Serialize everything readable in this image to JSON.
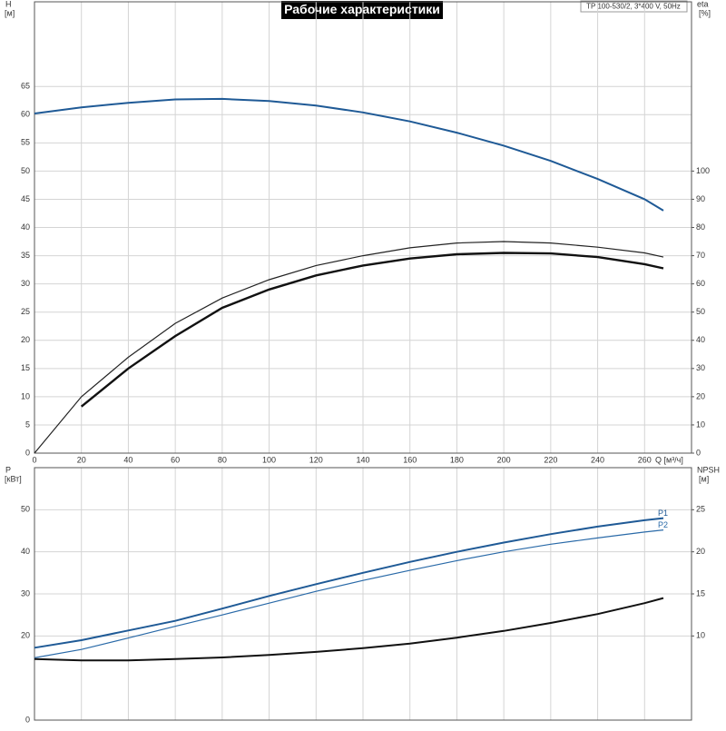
{
  "chart_data": [
    {
      "type": "line",
      "title": "Рабочие характеристики",
      "note": "TP 100-530/2, 3*400 V, 50Hz",
      "ylabel": "H",
      "yunit": "[м]",
      "y2label": "eta",
      "y2unit": "[%]",
      "xlabel": "Q [м³/ч]",
      "x": [
        0,
        20,
        40,
        60,
        80,
        100,
        120,
        140,
        160,
        180,
        200,
        220,
        240,
        260,
        268
      ],
      "xlim": [
        0,
        280
      ],
      "xticks": [
        0,
        20,
        40,
        60,
        80,
        100,
        120,
        140,
        160,
        180,
        200,
        220,
        240,
        260
      ],
      "ylim": [
        0,
        80
      ],
      "yticks": [
        0,
        5,
        10,
        15,
        20,
        25,
        30,
        35,
        40,
        45,
        50,
        55,
        60,
        65
      ],
      "y2lim": [
        0,
        160
      ],
      "y2ticks": [
        0,
        10,
        20,
        30,
        40,
        50,
        60,
        70,
        80,
        90,
        100
      ],
      "grid": true,
      "xtick_labels": true,
      "series": [
        {
          "color": "#1f5a96",
          "linewidth": 2,
          "values": [
            60.2,
            61.3,
            62.1,
            62.7,
            62.8,
            62.4,
            61.6,
            60.4,
            58.8,
            56.8,
            54.5,
            51.8,
            48.6,
            45,
            43
          ]
        },
        {
          "color": "#222222",
          "linewidth": 1.2,
          "axis": "y2",
          "values": [
            0,
            20,
            34,
            46,
            55,
            61.5,
            66.5,
            70,
            72.8,
            74.5,
            75,
            74.5,
            73,
            71,
            69.5
          ]
        },
        {
          "color": "#111111",
          "linewidth": 2.4,
          "axis": "y2",
          "values": [
            null,
            16.5,
            30,
            41.5,
            51.5,
            58,
            63,
            66.5,
            69,
            70.5,
            71,
            70.8,
            69.5,
            67,
            65.5
          ]
        }
      ]
    },
    {
      "type": "line",
      "ylabel": "P",
      "yunit": "[кВт]",
      "y2label": "NPSH",
      "y2unit": "[м]",
      "x": [
        0,
        20,
        40,
        60,
        80,
        100,
        120,
        140,
        160,
        180,
        200,
        220,
        240,
        260,
        268
      ],
      "xlim": [
        0,
        280
      ],
      "xticks": [
        0,
        20,
        40,
        60,
        80,
        100,
        120,
        140,
        160,
        180,
        200,
        220,
        240,
        260
      ],
      "ylim": [
        0,
        60
      ],
      "yticks": [
        0,
        20,
        30,
        40,
        50
      ],
      "y2lim": [
        0,
        30
      ],
      "y2ticks": [
        10,
        15,
        20,
        25
      ],
      "grid": true,
      "xtick_labels": false,
      "series": [
        {
          "name": "P1",
          "color": "#1f5a96",
          "linewidth": 2,
          "values": [
            17.2,
            19,
            21.3,
            23.6,
            26.5,
            29.5,
            32.3,
            35,
            37.6,
            40,
            42.2,
            44.2,
            46,
            47.5,
            48
          ]
        },
        {
          "name": "P2",
          "color": "#2a6aa8",
          "linewidth": 1.2,
          "values": [
            14.8,
            16.8,
            19.5,
            22.3,
            25,
            27.8,
            30.6,
            33.2,
            35.6,
            37.9,
            40,
            41.8,
            43.3,
            44.7,
            45.2
          ]
        },
        {
          "color": "#111111",
          "linewidth": 2,
          "axis": "y2",
          "values": [
            7.25,
            7.1,
            7.1,
            7.25,
            7.45,
            7.75,
            8.1,
            8.55,
            9.1,
            9.8,
            10.6,
            11.55,
            12.6,
            13.9,
            14.5
          ]
        }
      ]
    }
  ]
}
